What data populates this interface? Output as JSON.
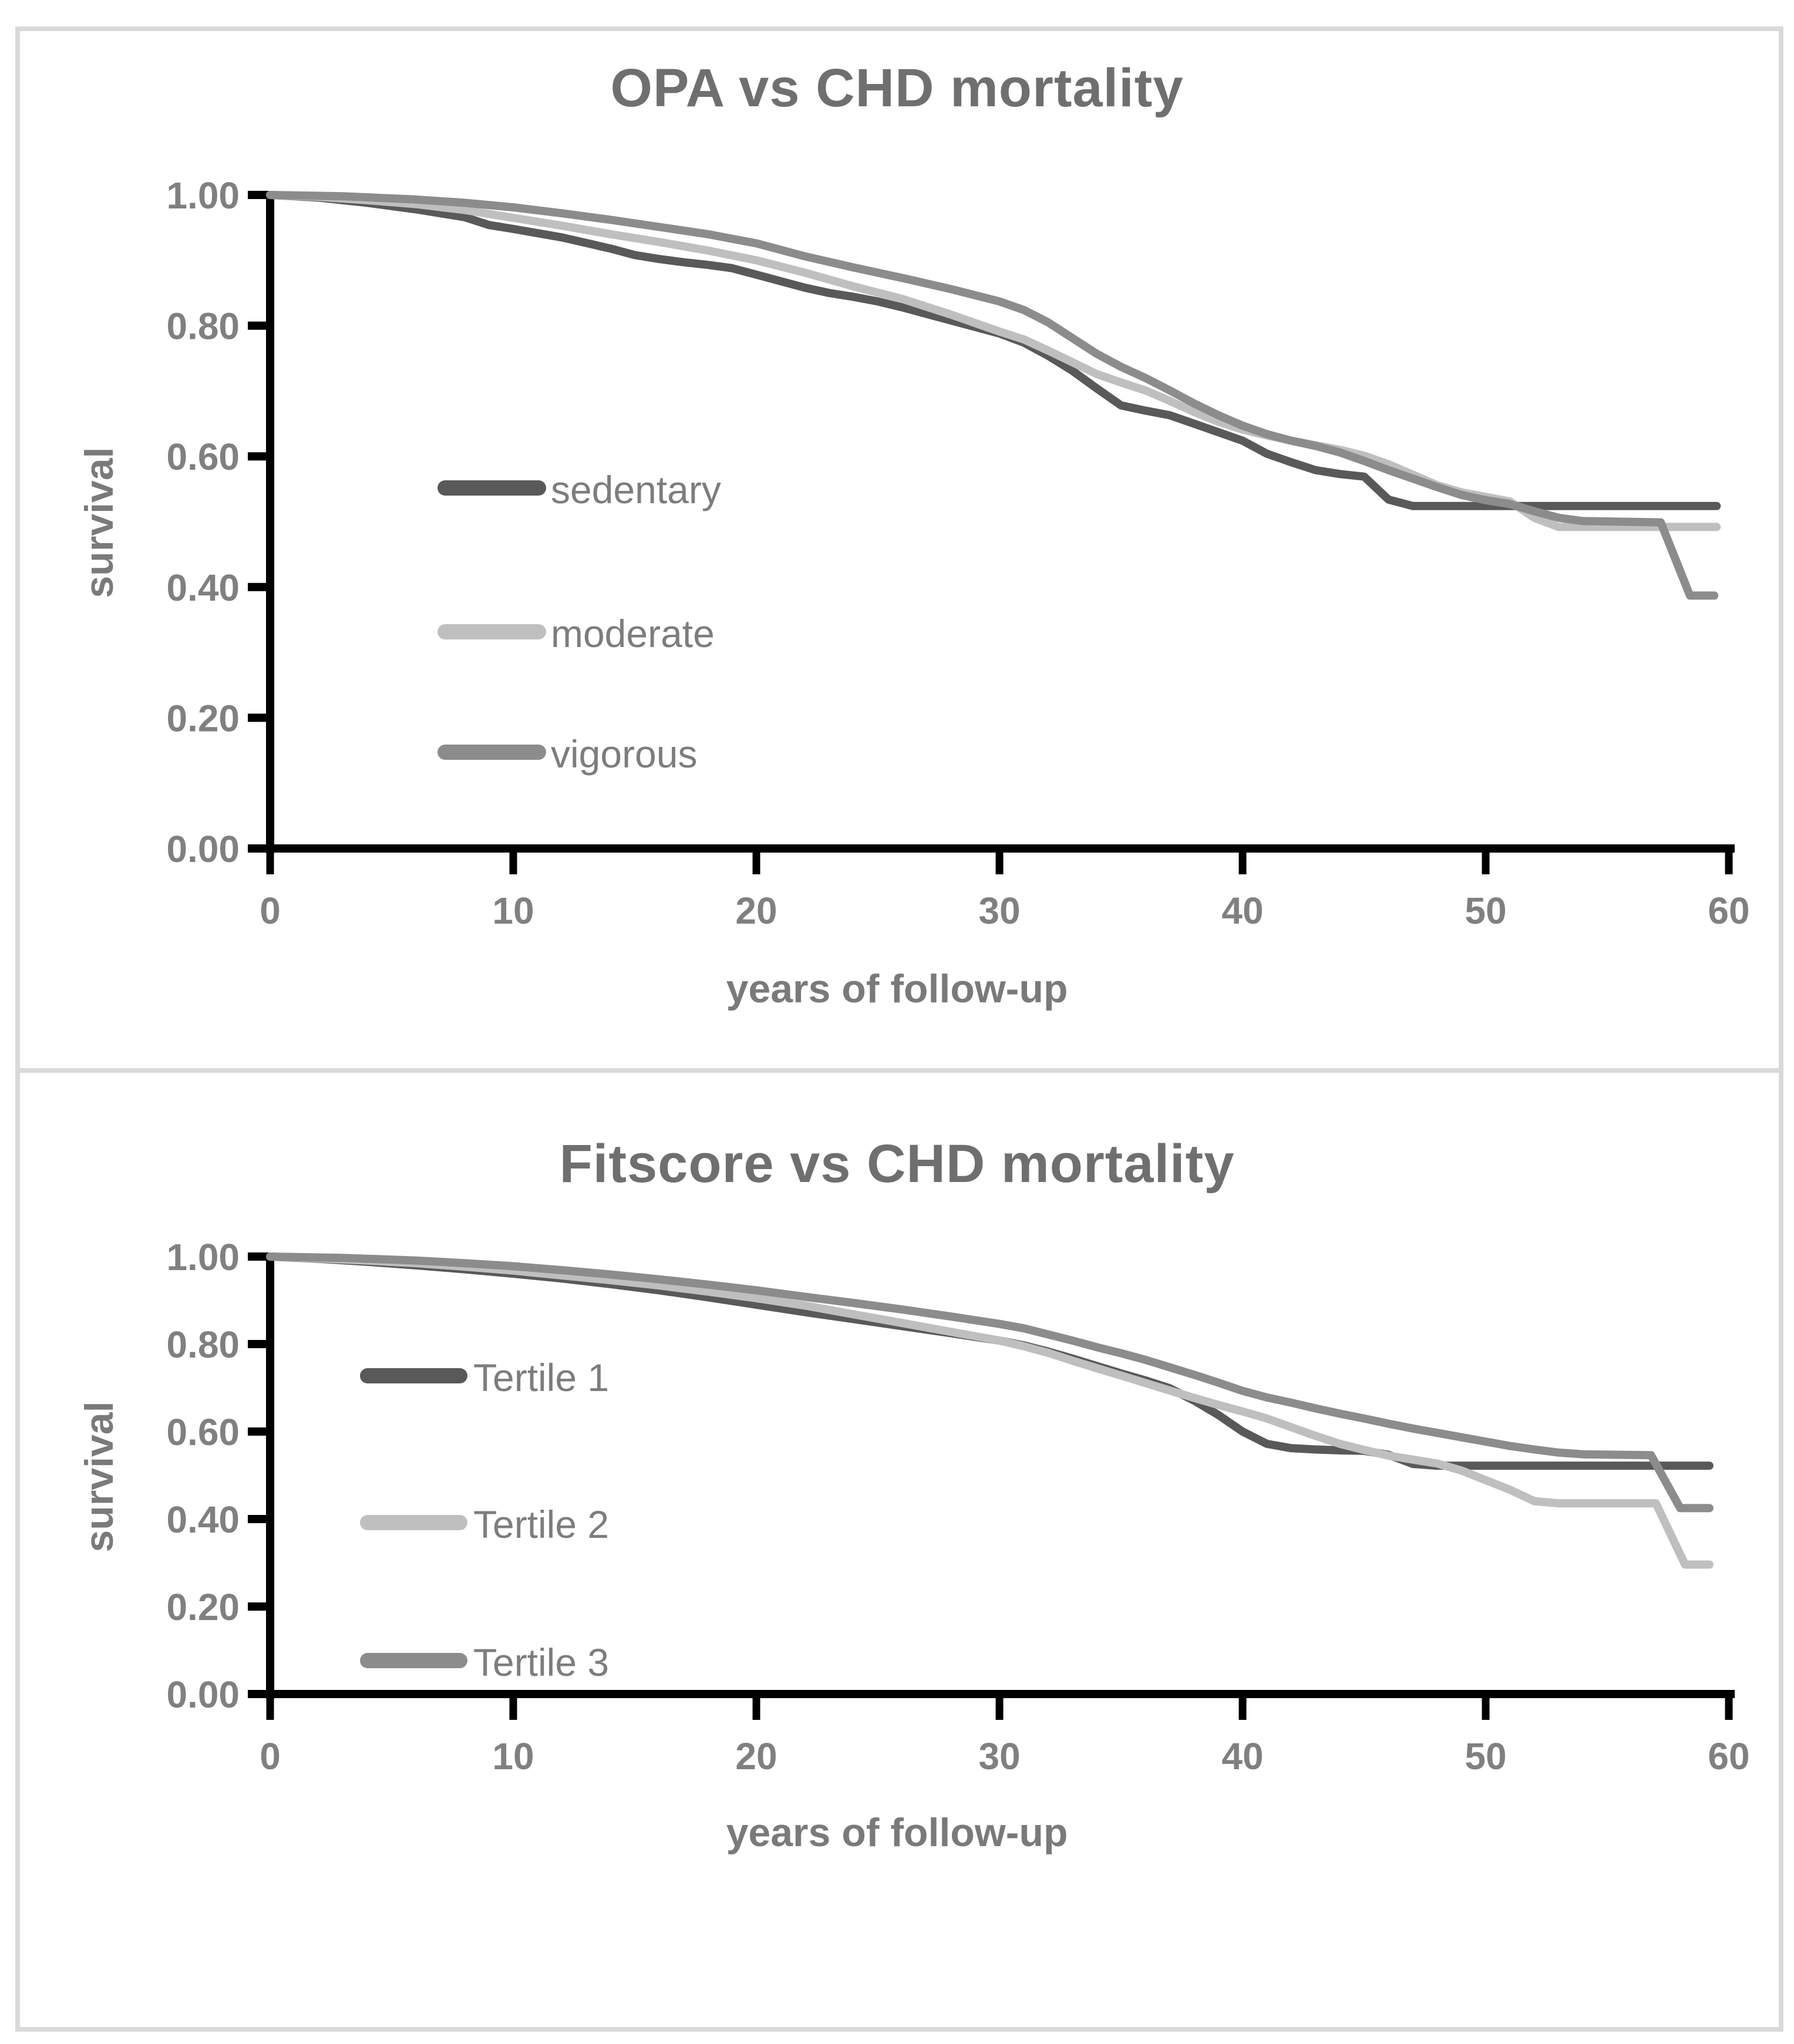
{
  "page": {
    "background": "#ffffff",
    "frame_color": "#d9d9d9",
    "axis_color": "#000000",
    "text_color": "#7d7d7d",
    "title_color": "#6f6f6f"
  },
  "chart_data": [
    {
      "type": "line",
      "title": "OPA vs CHD mortality",
      "xlabel": "years of follow-up",
      "ylabel": "survival",
      "xlim": [
        0,
        60
      ],
      "ylim": [
        0.0,
        1.0
      ],
      "grid": false,
      "legend_position": "inside-left",
      "x_ticks": [
        "0",
        "10",
        "20",
        "30",
        "40",
        "50",
        "60"
      ],
      "y_ticks": [
        "1.00",
        "0.80",
        "0.60",
        "0.40",
        "0.20",
        "0.00"
      ],
      "series": [
        {
          "name": "sedentary",
          "color": "#595959",
          "points": [
            [
              0,
              1
            ],
            [
              2,
              0.996
            ],
            [
              4,
              0.988
            ],
            [
              6,
              0.978
            ],
            [
              8,
              0.966
            ],
            [
              9,
              0.954
            ],
            [
              10,
              0.948
            ],
            [
              12,
              0.935
            ],
            [
              14,
              0.918
            ],
            [
              15,
              0.908
            ],
            [
              16,
              0.902
            ],
            [
              17,
              0.897
            ],
            [
              18,
              0.893
            ],
            [
              19,
              0.888
            ],
            [
              20,
              0.878
            ],
            [
              21,
              0.868
            ],
            [
              22,
              0.858
            ],
            [
              23,
              0.85
            ],
            [
              24,
              0.844
            ],
            [
              25,
              0.837
            ],
            [
              26,
              0.828
            ],
            [
              27,
              0.818
            ],
            [
              28,
              0.808
            ],
            [
              29,
              0.798
            ],
            [
              30,
              0.788
            ],
            [
              31,
              0.774
            ],
            [
              32,
              0.754
            ],
            [
              33,
              0.731
            ],
            [
              34,
              0.704
            ],
            [
              35,
              0.678
            ],
            [
              36,
              0.67
            ],
            [
              37,
              0.663
            ],
            [
              38,
              0.65
            ],
            [
              39,
              0.637
            ],
            [
              40,
              0.624
            ],
            [
              41,
              0.604
            ],
            [
              42,
              0.591
            ],
            [
              43,
              0.579
            ],
            [
              44,
              0.573
            ],
            [
              45,
              0.569
            ],
            [
              46,
              0.534
            ],
            [
              47,
              0.524
            ],
            [
              59.5,
              0.524
            ]
          ]
        },
        {
          "name": "moderate",
          "color": "#bfbfbf",
          "points": [
            [
              0,
              1
            ],
            [
              2,
              0.997
            ],
            [
              4,
              0.992
            ],
            [
              6,
              0.986
            ],
            [
              8,
              0.977
            ],
            [
              10,
              0.965
            ],
            [
              12,
              0.953
            ],
            [
              14,
              0.94
            ],
            [
              16,
              0.928
            ],
            [
              18,
              0.915
            ],
            [
              20,
              0.9
            ],
            [
              22,
              0.881
            ],
            [
              24,
              0.86
            ],
            [
              26,
              0.841
            ],
            [
              28,
              0.817
            ],
            [
              30,
              0.791
            ],
            [
              31,
              0.779
            ],
            [
              32,
              0.762
            ],
            [
              33,
              0.744
            ],
            [
              34,
              0.726
            ],
            [
              35,
              0.713
            ],
            [
              36,
              0.701
            ],
            [
              37,
              0.685
            ],
            [
              38,
              0.668
            ],
            [
              39,
              0.653
            ],
            [
              40,
              0.641
            ],
            [
              41,
              0.632
            ],
            [
              42,
              0.624
            ],
            [
              43,
              0.617
            ],
            [
              44,
              0.61
            ],
            [
              45,
              0.601
            ],
            [
              46,
              0.588
            ],
            [
              47,
              0.572
            ],
            [
              48,
              0.556
            ],
            [
              49,
              0.545
            ],
            [
              50,
              0.538
            ],
            [
              51,
              0.531
            ],
            [
              52,
              0.506
            ],
            [
              53,
              0.492
            ],
            [
              59.5,
              0.492
            ]
          ]
        },
        {
          "name": "vigorous",
          "color": "#8c8c8c",
          "points": [
            [
              0,
              1
            ],
            [
              3,
              0.998
            ],
            [
              6,
              0.993
            ],
            [
              8,
              0.988
            ],
            [
              10,
              0.981
            ],
            [
              12,
              0.972
            ],
            [
              14,
              0.962
            ],
            [
              16,
              0.951
            ],
            [
              18,
              0.94
            ],
            [
              20,
              0.926
            ],
            [
              22,
              0.906
            ],
            [
              24,
              0.889
            ],
            [
              26,
              0.873
            ],
            [
              28,
              0.856
            ],
            [
              30,
              0.837
            ],
            [
              31,
              0.824
            ],
            [
              32,
              0.805
            ],
            [
              33,
              0.781
            ],
            [
              34,
              0.757
            ],
            [
              35,
              0.737
            ],
            [
              36,
              0.72
            ],
            [
              37,
              0.701
            ],
            [
              38,
              0.681
            ],
            [
              39,
              0.663
            ],
            [
              40,
              0.647
            ],
            [
              41,
              0.634
            ],
            [
              42,
              0.624
            ],
            [
              43,
              0.616
            ],
            [
              44,
              0.606
            ],
            [
              45,
              0.593
            ],
            [
              46,
              0.579
            ],
            [
              47,
              0.566
            ],
            [
              48,
              0.553
            ],
            [
              49,
              0.541
            ],
            [
              50,
              0.533
            ],
            [
              51,
              0.527
            ],
            [
              52,
              0.516
            ],
            [
              53,
              0.506
            ],
            [
              54,
              0.501
            ],
            [
              57.2,
              0.499
            ],
            [
              58.4,
              0.387
            ],
            [
              59.4,
              0.387
            ]
          ]
        }
      ]
    },
    {
      "type": "line",
      "title": "Fitscore vs CHD mortality",
      "xlabel": "years of follow-up",
      "ylabel": "survival",
      "xlim": [
        0,
        60
      ],
      "ylim": [
        0.0,
        1.0
      ],
      "grid": false,
      "legend_position": "inside-left",
      "x_ticks": [
        "0",
        "10",
        "20",
        "30",
        "40",
        "50",
        "60"
      ],
      "y_ticks": [
        "1.00",
        "0.80",
        "0.60",
        "0.40",
        "0.20",
        "0.00"
      ],
      "series": [
        {
          "name": "Tertile 1",
          "color": "#595959",
          "points": [
            [
              0,
              1
            ],
            [
              2,
              0.995
            ],
            [
              4,
              0.988
            ],
            [
              6,
              0.98
            ],
            [
              8,
              0.971
            ],
            [
              10,
              0.961
            ],
            [
              12,
              0.95
            ],
            [
              14,
              0.937
            ],
            [
              16,
              0.923
            ],
            [
              18,
              0.907
            ],
            [
              20,
              0.89
            ],
            [
              22,
              0.873
            ],
            [
              24,
              0.857
            ],
            [
              26,
              0.841
            ],
            [
              28,
              0.825
            ],
            [
              30,
              0.808
            ],
            [
              31,
              0.797
            ],
            [
              32,
              0.783
            ],
            [
              33,
              0.767
            ],
            [
              34,
              0.75
            ],
            [
              35,
              0.733
            ],
            [
              36,
              0.717
            ],
            [
              37,
              0.699
            ],
            [
              38,
              0.671
            ],
            [
              39,
              0.638
            ],
            [
              40,
              0.6
            ],
            [
              41,
              0.572
            ],
            [
              42,
              0.562
            ],
            [
              43,
              0.559
            ],
            [
              44,
              0.557
            ],
            [
              45,
              0.556
            ],
            [
              46,
              0.547
            ],
            [
              47,
              0.526
            ],
            [
              48,
              0.522
            ],
            [
              59.2,
              0.522
            ]
          ]
        },
        {
          "name": "Tertile 2",
          "color": "#bfbfbf",
          "points": [
            [
              0,
              1
            ],
            [
              2,
              0.996
            ],
            [
              4,
              0.991
            ],
            [
              6,
              0.985
            ],
            [
              8,
              0.977
            ],
            [
              10,
              0.968
            ],
            [
              12,
              0.957
            ],
            [
              14,
              0.946
            ],
            [
              16,
              0.934
            ],
            [
              18,
              0.92
            ],
            [
              20,
              0.905
            ],
            [
              22,
              0.888
            ],
            [
              24,
              0.868
            ],
            [
              26,
              0.848
            ],
            [
              28,
              0.828
            ],
            [
              30,
              0.808
            ],
            [
              31,
              0.795
            ],
            [
              32,
              0.78
            ],
            [
              33,
              0.762
            ],
            [
              34,
              0.745
            ],
            [
              35,
              0.728
            ],
            [
              36,
              0.711
            ],
            [
              37,
              0.694
            ],
            [
              38,
              0.677
            ],
            [
              39,
              0.661
            ],
            [
              40,
              0.646
            ],
            [
              41,
              0.63
            ],
            [
              42,
              0.61
            ],
            [
              43,
              0.59
            ],
            [
              44,
              0.572
            ],
            [
              45,
              0.558
            ],
            [
              46,
              0.545
            ],
            [
              47,
              0.536
            ],
            [
              48,
              0.527
            ],
            [
              49,
              0.511
            ],
            [
              50,
              0.489
            ],
            [
              51,
              0.467
            ],
            [
              52,
              0.441
            ],
            [
              53,
              0.436
            ],
            [
              57,
              0.436
            ],
            [
              58.2,
              0.296
            ],
            [
              59.2,
              0.296
            ]
          ]
        },
        {
          "name": "Tertile 3",
          "color": "#8c8c8c",
          "points": [
            [
              0,
              1
            ],
            [
              3,
              0.997
            ],
            [
              6,
              0.991
            ],
            [
              8,
              0.985
            ],
            [
              10,
              0.978
            ],
            [
              12,
              0.969
            ],
            [
              14,
              0.959
            ],
            [
              16,
              0.948
            ],
            [
              18,
              0.936
            ],
            [
              20,
              0.923
            ],
            [
              22,
              0.908
            ],
            [
              24,
              0.894
            ],
            [
              26,
              0.879
            ],
            [
              28,
              0.863
            ],
            [
              30,
              0.846
            ],
            [
              31,
              0.836
            ],
            [
              32,
              0.822
            ],
            [
              33,
              0.808
            ],
            [
              34,
              0.793
            ],
            [
              35,
              0.779
            ],
            [
              36,
              0.764
            ],
            [
              37,
              0.747
            ],
            [
              38,
              0.73
            ],
            [
              39,
              0.712
            ],
            [
              40,
              0.693
            ],
            [
              41,
              0.678
            ],
            [
              42,
              0.666
            ],
            [
              43,
              0.653
            ],
            [
              44,
              0.641
            ],
            [
              45,
              0.63
            ],
            [
              46,
              0.618
            ],
            [
              47,
              0.607
            ],
            [
              48,
              0.597
            ],
            [
              49,
              0.587
            ],
            [
              50,
              0.577
            ],
            [
              51,
              0.567
            ],
            [
              52,
              0.559
            ],
            [
              53,
              0.552
            ],
            [
              54,
              0.548
            ],
            [
              56.8,
              0.546
            ],
            [
              58,
              0.425
            ],
            [
              59.2,
              0.425
            ]
          ]
        }
      ]
    }
  ]
}
